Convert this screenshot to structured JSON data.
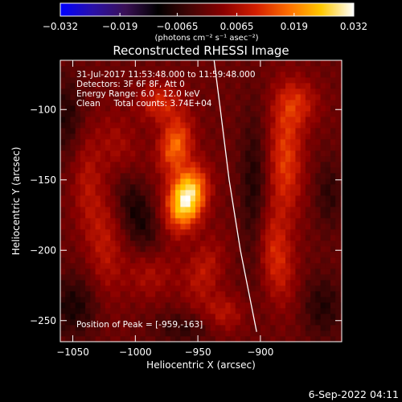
{
  "chart_data": {
    "type": "heatmap",
    "title": "Reconstructed RHESSI Image",
    "xlabel": "Heliocentric X (arcsec)",
    "ylabel": "Heliocentric Y (arcsec)",
    "x_range": [
      -1060,
      -835
    ],
    "y_range": [
      -265,
      -65
    ],
    "x_ticks": [
      -1050,
      -1000,
      -950,
      -900
    ],
    "x_tick_labels": [
      "−1050",
      "−1000",
      "−950",
      "−900"
    ],
    "y_ticks": [
      -250,
      -200,
      -150,
      -100
    ],
    "y_tick_labels": [
      "−250",
      "−200",
      "−150",
      "−100"
    ],
    "colorbar": {
      "min": -0.032,
      "max": 0.032,
      "tick_values": [
        -0.032,
        -0.019,
        -0.0065,
        0.0065,
        0.019,
        0.032
      ],
      "tick_labels": [
        "−0.032",
        "−0.019",
        "−0.0065",
        "0.0065",
        "0.019",
        "0.032"
      ],
      "unit_label": "(photons cm⁻² s⁻¹ asec⁻²)",
      "colormap": [
        "#0000ff",
        "#2a10a8",
        "#3a1055",
        "#000000",
        "#450505",
        "#8a0000",
        "#d21e00",
        "#ff6e00",
        "#ffc800",
        "#ffffff"
      ]
    },
    "annotations": [
      "31-Jul-2017 11:53:48.000 to 11:59:48.000",
      "Detectors: 3F 6F 8F, Att 0",
      "Energy Range: 6.0 - 12.0 keV",
      "Clean     Total counts: 3.74E+04"
    ],
    "peak_label": "Position of Peak = [-959,-163]",
    "peak_position": [
      -959,
      -163
    ],
    "limb_curve": [
      [
        -937,
        -65
      ],
      [
        -932,
        -100
      ],
      [
        -925,
        -150
      ],
      [
        -916,
        -200
      ],
      [
        -903,
        -258
      ]
    ],
    "limb_color": "#ffffff",
    "pixel_size_arcsec": 4,
    "components": [
      {
        "x": -959,
        "y": -163,
        "sx": 10,
        "sy": 15,
        "amp": 0.032,
        "angle": -0.35
      },
      {
        "x": -968,
        "y": -125,
        "sx": 9,
        "sy": 14,
        "amp": 0.017,
        "angle": -0.3
      },
      {
        "x": -980,
        "y": -95,
        "sx": 12,
        "sy": 10,
        "amp": 0.011,
        "angle": 0
      },
      {
        "x": -1015,
        "y": -130,
        "sx": 12,
        "sy": 20,
        "amp": 0.009,
        "angle": 0.3
      },
      {
        "x": -1025,
        "y": -195,
        "sx": 10,
        "sy": 28,
        "amp": 0.008,
        "angle": 0.1
      },
      {
        "x": -1040,
        "y": -150,
        "sx": 8,
        "sy": 25,
        "amp": 0.006,
        "angle": 0
      },
      {
        "x": -985,
        "y": -215,
        "sx": 14,
        "sy": 14,
        "amp": 0.009,
        "angle": 0
      },
      {
        "x": -945,
        "y": -215,
        "sx": 10,
        "sy": 18,
        "amp": 0.008,
        "angle": -0.4
      },
      {
        "x": -930,
        "y": -245,
        "sx": 12,
        "sy": 10,
        "amp": 0.008,
        "angle": 0
      },
      {
        "x": -880,
        "y": -135,
        "sx": 10,
        "sy": 30,
        "amp": 0.013,
        "angle": 0
      },
      {
        "x": -888,
        "y": -205,
        "sx": 10,
        "sy": 24,
        "amp": 0.011,
        "angle": 0.2
      },
      {
        "x": -870,
        "y": -95,
        "sx": 12,
        "sy": 12,
        "amp": 0.009,
        "angle": 0
      },
      {
        "x": -1000,
        "y": -170,
        "sx": 10,
        "sy": 35,
        "amp": -0.009,
        "angle": 0.4
      },
      {
        "x": -1055,
        "y": -105,
        "sx": 10,
        "sy": 20,
        "amp": -0.007,
        "angle": 0
      },
      {
        "x": -1050,
        "y": -240,
        "sx": 14,
        "sy": 16,
        "amp": -0.008,
        "angle": 0
      },
      {
        "x": -905,
        "y": -160,
        "sx": 8,
        "sy": 40,
        "amp": -0.008,
        "angle": 0
      },
      {
        "x": -850,
        "y": -240,
        "sx": 12,
        "sy": 16,
        "amp": -0.007,
        "angle": 0
      },
      {
        "x": -960,
        "y": -255,
        "sx": 18,
        "sy": 8,
        "amp": -0.006,
        "angle": 0
      },
      {
        "x": -845,
        "y": -160,
        "sx": 8,
        "sy": 18,
        "amp": -0.006,
        "angle": 0
      }
    ]
  },
  "footer": {
    "timestamp": "6-Sep-2022 04:11"
  }
}
